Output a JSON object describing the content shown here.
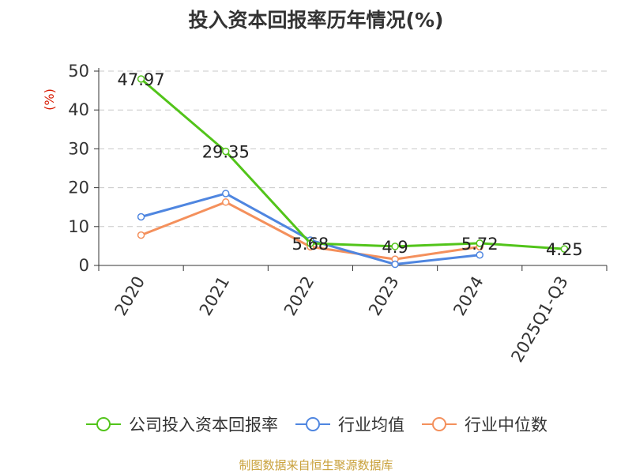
{
  "title": "投入资本回报率历年情况(%)",
  "source": "制图数据来自恒生聚源数据库",
  "chart_data": {
    "type": "line",
    "title": "投入资本回报率历年情况(%)",
    "ylabel": "(%)",
    "xlabel": "",
    "categories": [
      "2020",
      "2021",
      "2022",
      "2023",
      "2024",
      "2025Q1-Q3"
    ],
    "yticks": [
      "0",
      "10",
      "20",
      "30",
      "40",
      "50"
    ],
    "ylim": [
      0,
      50
    ],
    "grid": true,
    "legend": "bottom",
    "series": [
      {
        "name": "公司投入资本回报率",
        "color": "#52c41a",
        "values": [
          47.97,
          29.35,
          5.68,
          4.9,
          5.72,
          4.25
        ],
        "labels": [
          "47.97",
          "29.35",
          "5.68",
          "4.9",
          "5.72",
          "4.25"
        ]
      },
      {
        "name": "行业均值",
        "color": "#4f86e0",
        "values": [
          12.5,
          18.5,
          6.5,
          0.3,
          2.7,
          null
        ]
      },
      {
        "name": "行业中位数",
        "color": "#f4905c",
        "values": [
          7.8,
          16.3,
          4.8,
          1.6,
          4.8,
          null
        ]
      }
    ]
  }
}
